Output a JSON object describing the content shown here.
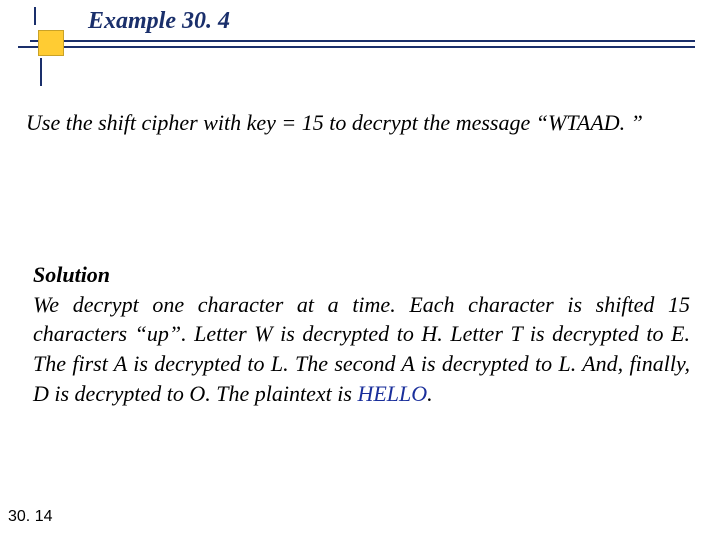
{
  "header": {
    "title": "Example 30. 4",
    "title_color": "#1a2f6b",
    "rule_color": "#1a2f6b",
    "square_fill": "#ffcc33",
    "square_border": "#c9a227"
  },
  "problem": {
    "text": "Use the shift cipher with key = 15 to decrypt the message “WTAAD. ”"
  },
  "solution": {
    "heading": "Solution",
    "body": "We decrypt one character at a time. Each character is shifted 15 characters “up”. Letter W is decrypted to H. Letter T is decrypted to E. The first A is decrypted to L. The second A is decrypted to L. And, finally, D is decrypted to O. The plaintext is ",
    "answer": "HELLO",
    "trailing": ".",
    "answer_color": "#1a2f9b"
  },
  "footer": {
    "page_number": "30. 14"
  },
  "typography": {
    "font_family": "Times New Roman",
    "title_fontsize": 24,
    "body_fontsize": 22,
    "footer_fontsize": 16
  }
}
